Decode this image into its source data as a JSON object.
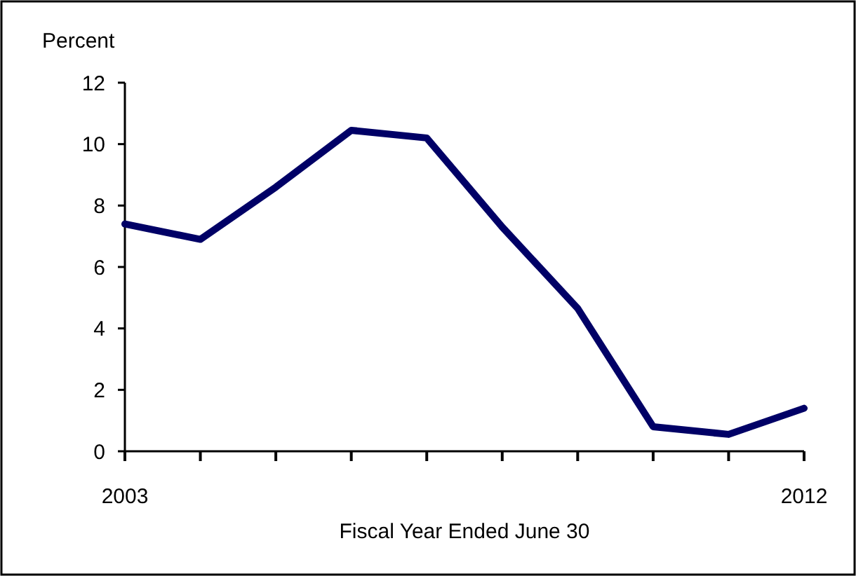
{
  "chart_data": {
    "type": "line",
    "ylabel": "Percent",
    "xlabel": "Fiscal Year Ended June 30",
    "x": [
      2003,
      2004,
      2005,
      2006,
      2007,
      2008,
      2009,
      2010,
      2011,
      2012
    ],
    "series": [
      {
        "color": "#000066",
        "values": [
          7.4,
          6.9,
          8.6,
          10.45,
          10.2,
          7.3,
          4.65,
          0.8,
          0.55,
          1.4
        ]
      }
    ],
    "xlim": [
      2003,
      2012
    ],
    "xticks": [
      2003,
      {
        "value": 2004,
        "label": null
      },
      {
        "value": 2005,
        "label": null
      },
      {
        "value": 2006,
        "label": null
      },
      {
        "value": 2007,
        "label": null
      },
      {
        "value": 2008,
        "label": null
      },
      {
        "value": 2009,
        "label": null
      },
      {
        "value": 2010,
        "label": null
      },
      {
        "value": 2011,
        "label": null
      },
      2012
    ],
    "ylim": [
      0,
      12
    ],
    "yticks": [
      0,
      2,
      4,
      6,
      8,
      10,
      12
    ],
    "grid": false,
    "marker": "none",
    "line_style": "solid"
  }
}
